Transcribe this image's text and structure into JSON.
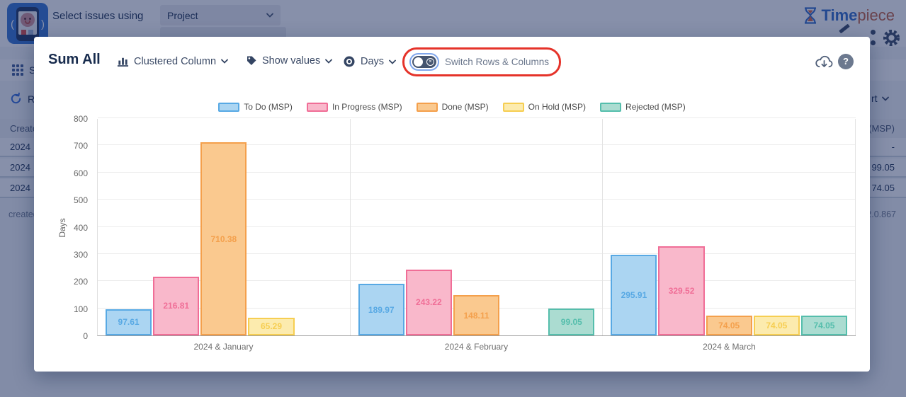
{
  "app": {
    "topbar": {
      "select_issues_label": "Select issues using",
      "project_value": "Project"
    },
    "logo": {
      "part1": "Time",
      "part2": "piece"
    },
    "background": {
      "toolbar_item": "St",
      "rows_item": "Ro",
      "export_fragment": "rt",
      "table": {
        "left_header": "Created",
        "right_header": "(MSP)",
        "rows": [
          [
            "2024",
            "-"
          ],
          [
            "2024",
            "99.05"
          ],
          [
            "2024",
            "74.05"
          ]
        ],
        "footer_left": "created >",
        "footer_right": "3.2.0.867"
      }
    }
  },
  "modal": {
    "title": "Sum All",
    "chart_type": "Clustered Column",
    "show_values": "Show values",
    "unit": "Days",
    "switch_label": "Switch Rows & Columns",
    "help": "?"
  },
  "colors": {
    "annotation_red": "#E5332A",
    "toggle_ring_blue": "#7FA6EC",
    "toggle_track": "#44546F",
    "logo_blue": "#2A66C8",
    "logo_orange": "#C15A39"
  },
  "chart_data": {
    "type": "bar",
    "title": "Sum All",
    "categories": [
      "2024 & January",
      "2024 & February",
      "2024 & March"
    ],
    "series": [
      {
        "name": "To Do (MSP)",
        "fill": "#ABD5F2",
        "border": "#58A9E4",
        "values": [
          97.61,
          189.97,
          295.91
        ]
      },
      {
        "name": "In Progress (MSP)",
        "fill": "#F9B8CB",
        "border": "#F06E97",
        "values": [
          216.81,
          243.22,
          329.52
        ]
      },
      {
        "name": "Done (MSP)",
        "fill": "#FAC98F",
        "border": "#F4A04C",
        "values": [
          710.38,
          148.11,
          74.05
        ]
      },
      {
        "name": "On Hold (MSP)",
        "fill": "#FCEBAE",
        "border": "#F6CE52",
        "values": [
          65.29,
          null,
          74.05
        ]
      },
      {
        "name": "Rejected (MSP)",
        "fill": "#ABDCD1",
        "border": "#55BEAC",
        "values": [
          null,
          99.05,
          74.05
        ]
      }
    ],
    "xlabel": "",
    "ylabel": "Days",
    "ylim": [
      0,
      800
    ],
    "ytick_step": 100,
    "grid": true,
    "legend_position": "top",
    "value_labels": "shown inside bars"
  }
}
